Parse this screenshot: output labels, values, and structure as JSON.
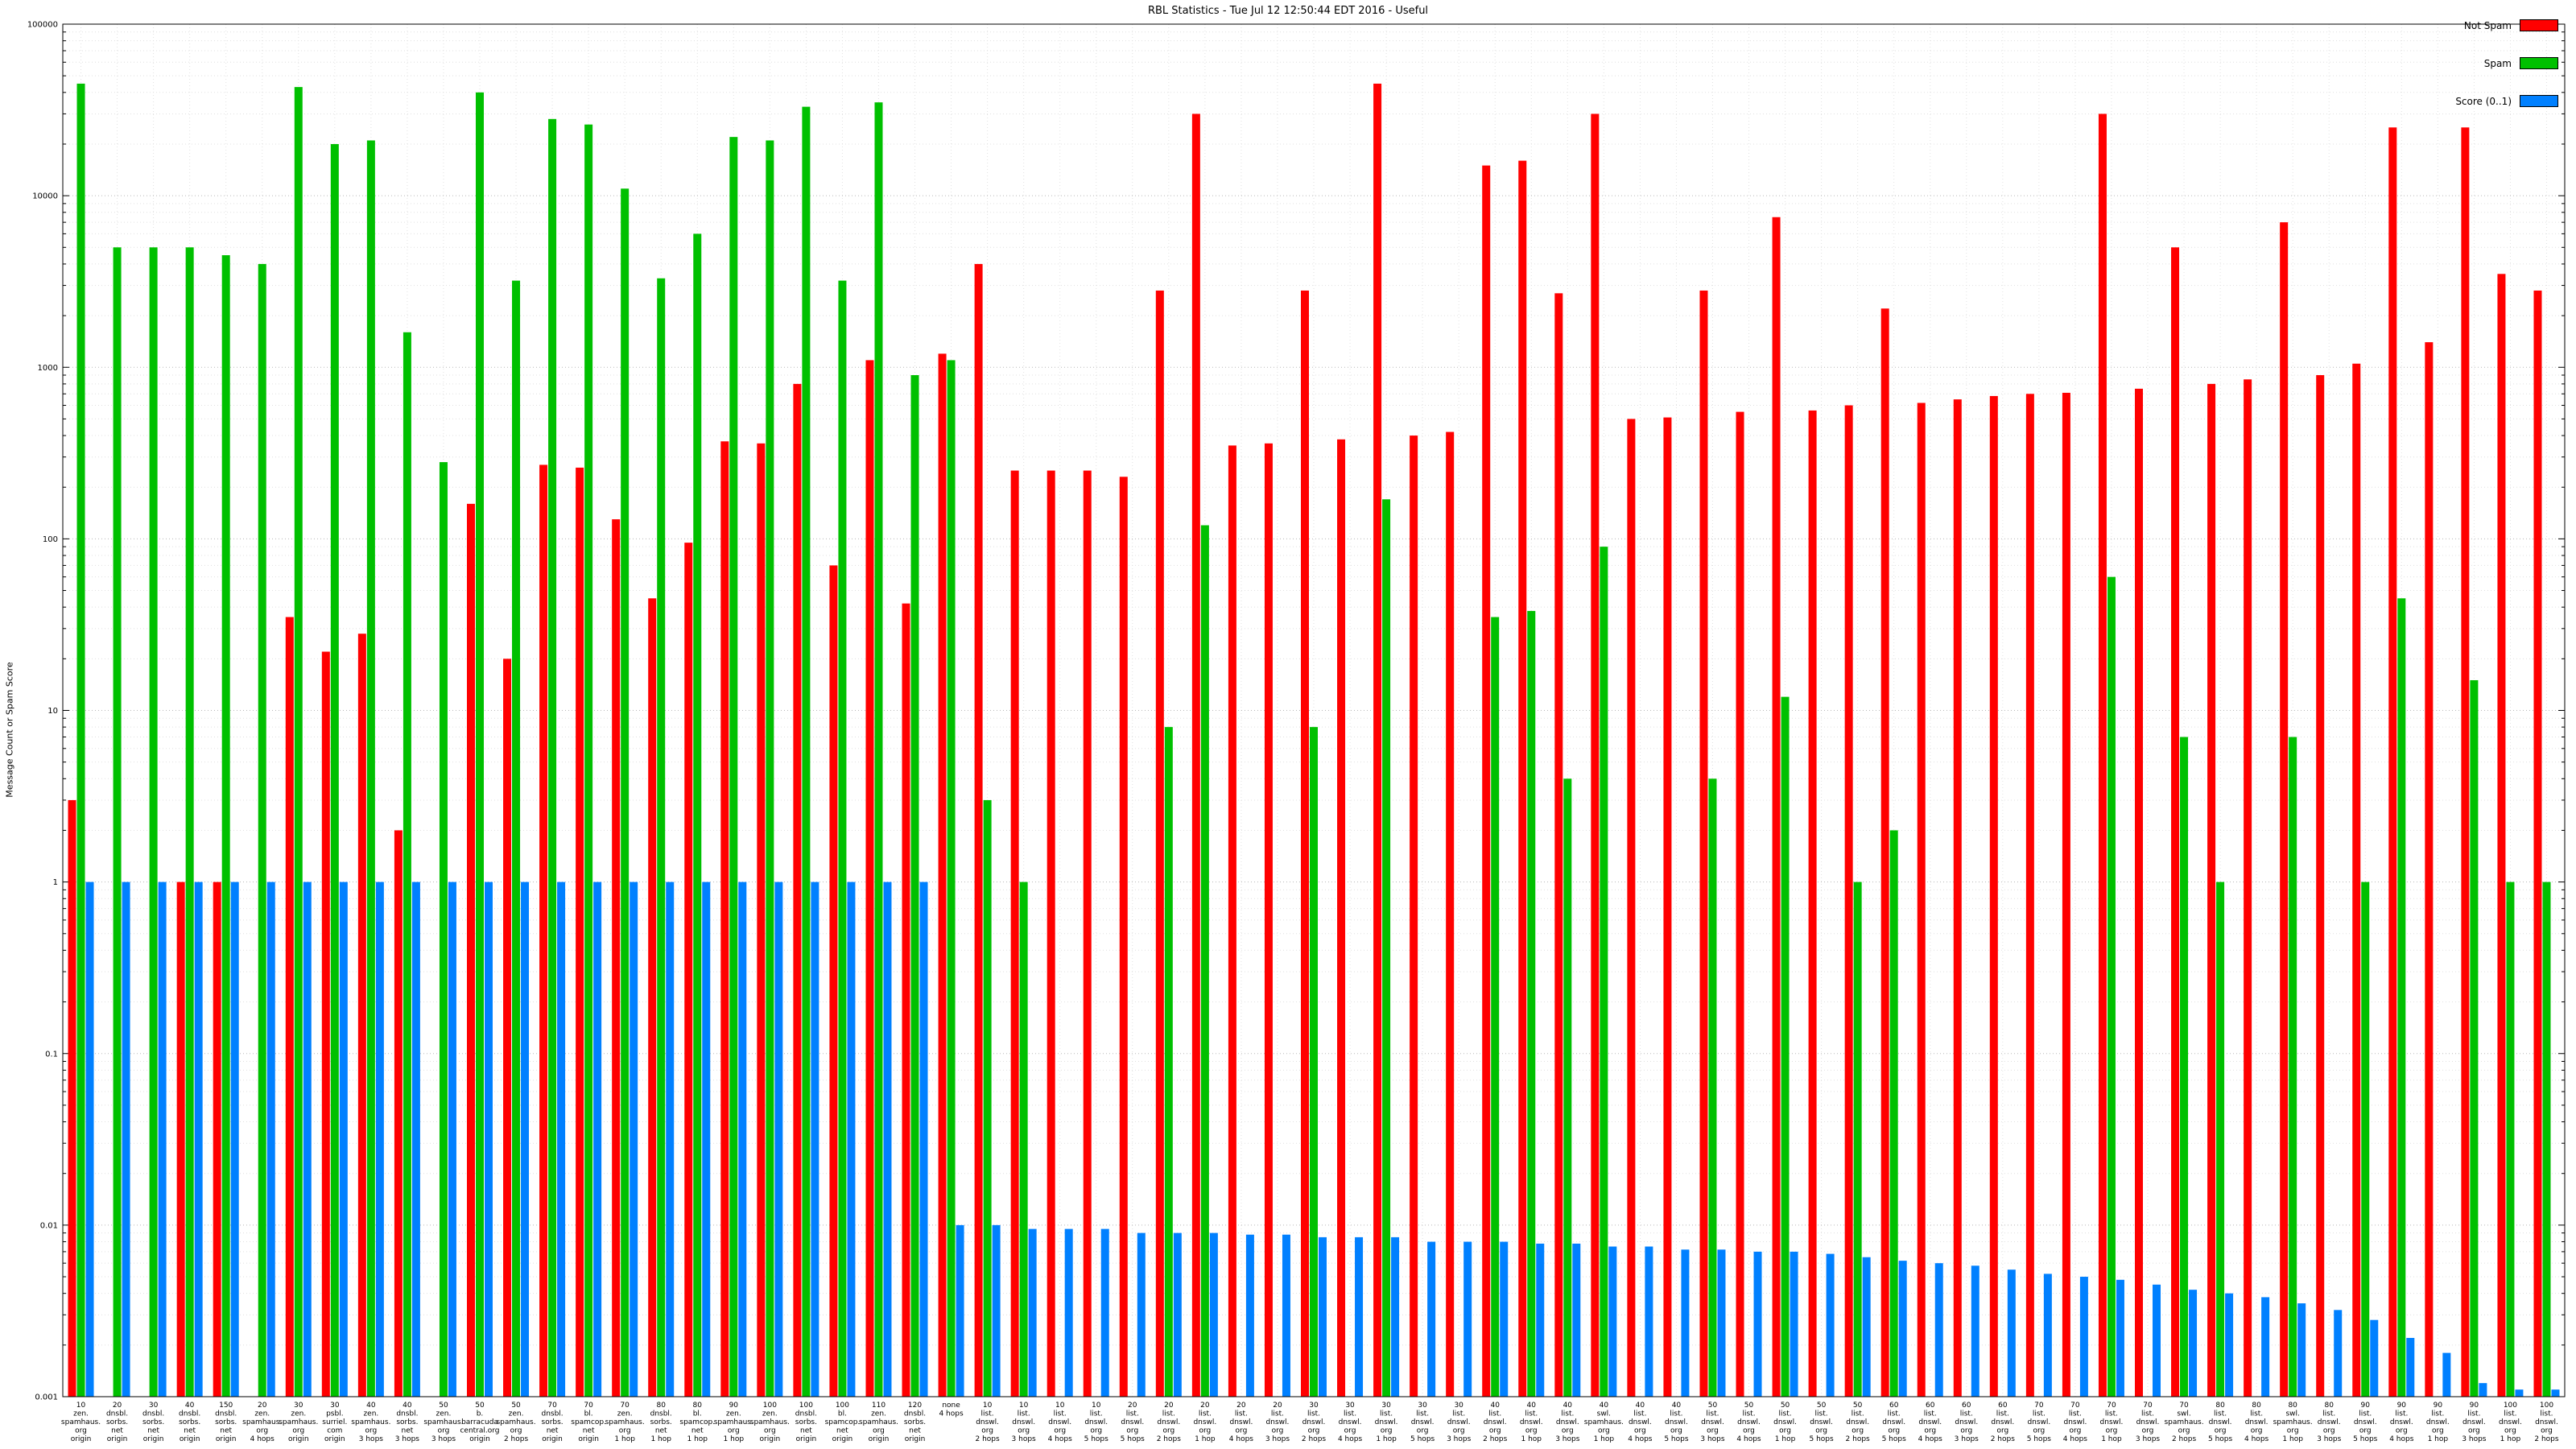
{
  "chart_data": {
    "type": "bar",
    "scale": "log",
    "title": "RBL Statistics - Tue Jul 12 12:50:44 EDT 2016 - Useful",
    "ylabel": "Message Count or Spam Score",
    "ylim": [
      0.001,
      100000
    ],
    "y_ticks": [
      "100000",
      "10000",
      "1000",
      "100",
      "10",
      "1",
      "0.1",
      "0.01",
      "0.001"
    ],
    "grid": true,
    "legend_position": "top-right",
    "categories": [
      "10\nzen.\nspamhaus.\norg\norigin",
      "20\ndnsbl.\nsorbs.\nnet\norigin",
      "30\ndnsbl.\nsorbs.\nnet\norigin",
      "40\ndnsbl.\nsorbs.\nnet\norigin",
      "150\ndnsbl.\nsorbs.\nnet\norigin",
      "20\nzen.\nspamhaus.\norg\n4 hops",
      "30\nzen.\nspamhaus.\norg\norigin",
      "30\npsbl.\nsurriel.\ncom\norigin",
      "40\nzen.\nspamhaus.\norg\n3 hops",
      "40\ndnsbl.\nsorbs.\nnet\n3 hops",
      "50\nzen.\nspamhaus.\norg\n3 hops",
      "50\nb.\nbarracuda\ncentral.org\norigin",
      "50\nzen.\nspamhaus.\norg\n2 hops",
      "70\ndnsbl.\nsorbs.\nnet\norigin",
      "70\nbl.\nspamcop.\nnet\norigin",
      "70\nzen.\nspamhaus.\norg\n1 hop",
      "80\ndnsbl.\nsorbs.\nnet\n1 hop",
      "80\nbl.\nspamcop.\nnet\n1 hop",
      "90\nzen.\nspamhaus.\norg\n1 hop",
      "100\nzen.\nspamhaus.\norg\norigin",
      "100\ndnsbl.\nsorbs.\nnet\norigin",
      "100\nbl.\nspamcop.\nnet\norigin",
      "110\nzen.\nspamhaus.\norg\norigin",
      "120\ndnsbl.\nsorbs.\nnet\norigin",
      "none\n4 hops",
      "10\nlist.\ndnswl.\norg\n2 hops",
      "10\nlist.\ndnswl.\norg\n3 hops",
      "10\nlist.\ndnswl.\norg\n4 hops",
      "10\nlist.\ndnswl.\norg\n5 hops",
      "20\nlist.\ndnswl.\norg\n5 hops",
      "20\nlist.\ndnswl.\norg\n2 hops",
      "20\nlist.\ndnswl.\norg\n1 hop",
      "20\nlist.\ndnswl.\norg\n4 hops",
      "20\nlist.\ndnswl.\norg\n3 hops",
      "30\nlist.\ndnswl.\norg\n2 hops",
      "30\nlist.\ndnswl.\norg\n4 hops",
      "30\nlist.\ndnswl.\norg\n1 hop",
      "30\nlist.\ndnswl.\norg\n5 hops",
      "30\nlist.\ndnswl.\norg\n3 hops",
      "40\nlist.\ndnswl.\norg\n2 hops",
      "40\nlist.\ndnswl.\norg\n1 hop",
      "40\nlist.\ndnswl.\norg\n3 hops",
      "40\nswl.\nspamhaus.\norg\n1 hop",
      "40\nlist.\ndnswl.\norg\n4 hops",
      "40\nlist.\ndnswl.\norg\n5 hops",
      "50\nlist.\ndnswl.\norg\n3 hops",
      "50\nlist.\ndnswl.\norg\n4 hops",
      "50\nlist.\ndnswl.\norg\n1 hop",
      "50\nlist.\ndnswl.\norg\n5 hops",
      "50\nlist.\ndnswl.\norg\n2 hops",
      "60\nlist.\ndnswl.\norg\n5 hops",
      "60\nlist.\ndnswl.\norg\n4 hops",
      "60\nlist.\ndnswl.\norg\n3 hops",
      "60\nlist.\ndnswl.\norg\n2 hops",
      "70\nlist.\ndnswl.\norg\n5 hops",
      "70\nlist.\ndnswl.\norg\n4 hops",
      "70\nlist.\ndnswl.\norg\n1 hop",
      "70\nlist.\ndnswl.\norg\n3 hops",
      "70\nswl.\nspamhaus.\norg\n2 hops",
      "80\nlist.\ndnswl.\norg\n5 hops",
      "80\nlist.\ndnswl.\norg\n4 hops",
      "80\nswl.\nspamhaus.\norg\n1 hop",
      "80\nlist.\ndnswl.\norg\n3 hops",
      "90\nlist.\ndnswl.\norg\n5 hops",
      "90\nlist.\ndnswl.\norg\n4 hops",
      "90\nlist.\ndnswl.\norg\n1 hop",
      "90\nlist.\ndnswl.\norg\n3 hops",
      "100\nlist.\ndnswl.\norg\n1 hop",
      "100\nlist.\ndnswl.\norg\n2 hops"
    ],
    "series": [
      {
        "name": "Not Spam",
        "color": "#ff0000",
        "values": [
          3,
          null,
          null,
          1,
          1,
          null,
          35,
          22,
          28,
          2,
          null,
          160,
          20,
          270,
          260,
          130,
          45,
          95,
          370,
          360,
          800,
          70,
          1100,
          42,
          1200,
          4000,
          250,
          250,
          250,
          230,
          2800,
          30000,
          350,
          360,
          2800,
          380,
          45000,
          400,
          420,
          15000,
          16000,
          2700,
          30000,
          500,
          510,
          2800,
          550,
          7500,
          560,
          600,
          2200,
          620,
          650,
          680,
          700,
          710,
          30000,
          750,
          5000,
          800,
          850,
          7000,
          900,
          1050,
          25000,
          1400,
          25000,
          3500,
          2800
        ]
      },
      {
        "name": "Spam",
        "color": "#00c000",
        "values": [
          45000,
          5000,
          5000,
          5000,
          4500,
          4000,
          43000,
          20000,
          21000,
          1600,
          280,
          40000,
          3200,
          28000,
          26000,
          11000,
          3300,
          6000,
          22000,
          21000,
          33000,
          3200,
          35000,
          900,
          1100,
          3,
          1,
          null,
          null,
          null,
          8,
          120,
          null,
          null,
          8,
          null,
          170,
          null,
          null,
          35,
          38,
          4,
          90,
          null,
          null,
          4,
          null,
          12,
          null,
          1,
          2,
          null,
          null,
          null,
          null,
          null,
          60,
          null,
          7,
          1,
          null,
          7,
          null,
          1,
          45,
          null,
          15,
          1,
          1
        ]
      },
      {
        "name": "Score (0..1)",
        "color": "#0080ff",
        "values": [
          1,
          1,
          1,
          1,
          1,
          1,
          1,
          1,
          1,
          1,
          1,
          1,
          1,
          1,
          1,
          1,
          1,
          1,
          1,
          1,
          1,
          1,
          1,
          1,
          0.01,
          0.01,
          0.0095,
          0.0095,
          0.0095,
          0.009,
          0.009,
          0.009,
          0.0088,
          0.0088,
          0.0085,
          0.0085,
          0.0085,
          0.008,
          0.008,
          0.008,
          0.0078,
          0.0078,
          0.0075,
          0.0075,
          0.0072,
          0.0072,
          0.007,
          0.007,
          0.0068,
          0.0065,
          0.0062,
          0.006,
          0.0058,
          0.0055,
          0.0052,
          0.005,
          0.0048,
          0.0045,
          0.0042,
          0.004,
          0.0038,
          0.0035,
          0.0032,
          0.0028,
          0.0022,
          0.0018,
          0.0012,
          0.0011,
          0.0011
        ]
      }
    ]
  }
}
